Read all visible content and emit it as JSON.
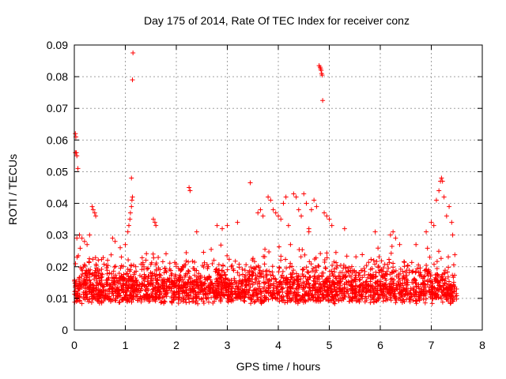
{
  "chart_data": {
    "type": "scatter",
    "title": "Day 175 of 2014, Rate Of TEC Index for receiver conz",
    "xlabel": "GPS time / hours",
    "ylabel": "ROTI / TECUs",
    "xlim": [
      0,
      8
    ],
    "ylim": [
      0,
      0.09
    ],
    "xticks": [
      "0",
      "1",
      "2",
      "3",
      "4",
      "5",
      "6",
      "7",
      "8"
    ],
    "yticks": [
      "0",
      "0.01",
      "0.02",
      "0.03",
      "0.04",
      "0.05",
      "0.06",
      "0.07",
      "0.08",
      "0.09"
    ],
    "grid": true,
    "marker": "+",
    "color": "#ff0000",
    "series": [
      {
        "name": "ROTI",
        "points": [
          [
            0.02,
            0.062
          ],
          [
            0.03,
            0.061
          ],
          [
            0.02,
            0.056
          ],
          [
            0.04,
            0.056
          ],
          [
            0.05,
            0.055
          ],
          [
            0.07,
            0.051
          ],
          [
            0.05,
            0.029
          ],
          [
            0.1,
            0.03
          ],
          [
            0.15,
            0.029
          ],
          [
            0.2,
            0.028
          ],
          [
            0.25,
            0.027
          ],
          [
            0.3,
            0.03
          ],
          [
            0.35,
            0.039
          ],
          [
            0.37,
            0.038
          ],
          [
            0.4,
            0.037
          ],
          [
            0.42,
            0.036
          ],
          [
            0.75,
            0.029
          ],
          [
            0.8,
            0.028
          ],
          [
            0.9,
            0.026
          ],
          [
            1.0,
            0.027
          ],
          [
            1.05,
            0.031
          ],
          [
            1.07,
            0.033
          ],
          [
            1.09,
            0.035
          ],
          [
            1.1,
            0.037
          ],
          [
            1.12,
            0.039
          ],
          [
            1.13,
            0.041
          ],
          [
            1.14,
            0.042
          ],
          [
            1.12,
            0.048
          ],
          [
            1.15,
            0.0875
          ],
          [
            1.14,
            0.079
          ],
          [
            1.55,
            0.035
          ],
          [
            1.58,
            0.034
          ],
          [
            1.6,
            0.033
          ],
          [
            2.25,
            0.045
          ],
          [
            2.27,
            0.044
          ],
          [
            2.4,
            0.031
          ],
          [
            2.8,
            0.033
          ],
          [
            2.9,
            0.032
          ],
          [
            3.0,
            0.033
          ],
          [
            3.2,
            0.034
          ],
          [
            3.45,
            0.0465
          ],
          [
            3.6,
            0.037
          ],
          [
            3.65,
            0.038
          ],
          [
            3.7,
            0.036
          ],
          [
            3.8,
            0.042
          ],
          [
            3.85,
            0.041
          ],
          [
            3.9,
            0.038
          ],
          [
            3.95,
            0.037
          ],
          [
            4.0,
            0.036
          ],
          [
            4.05,
            0.035
          ],
          [
            4.1,
            0.04
          ],
          [
            4.15,
            0.042
          ],
          [
            4.2,
            0.033
          ],
          [
            4.3,
            0.043
          ],
          [
            4.35,
            0.042
          ],
          [
            4.4,
            0.038
          ],
          [
            4.45,
            0.036
          ],
          [
            4.5,
            0.043
          ],
          [
            4.55,
            0.04
          ],
          [
            4.6,
            0.032
          ],
          [
            4.65,
            0.038
          ],
          [
            4.7,
            0.041
          ],
          [
            4.75,
            0.039
          ],
          [
            4.6,
            0.031
          ],
          [
            4.8,
            0.0835
          ],
          [
            4.82,
            0.083
          ],
          [
            4.83,
            0.0825
          ],
          [
            4.84,
            0.082
          ],
          [
            4.85,
            0.081
          ],
          [
            4.86,
            0.0805
          ],
          [
            4.87,
            0.0725
          ],
          [
            4.9,
            0.037
          ],
          [
            4.95,
            0.036
          ],
          [
            5.0,
            0.035
          ],
          [
            5.05,
            0.033
          ],
          [
            5.3,
            0.032
          ],
          [
            5.9,
            0.031
          ],
          [
            6.2,
            0.03
          ],
          [
            6.25,
            0.031
          ],
          [
            6.3,
            0.029
          ],
          [
            6.7,
            0.027
          ],
          [
            6.9,
            0.031
          ],
          [
            7.0,
            0.034
          ],
          [
            7.05,
            0.033
          ],
          [
            7.1,
            0.041
          ],
          [
            7.15,
            0.044
          ],
          [
            7.18,
            0.047
          ],
          [
            7.2,
            0.048
          ],
          [
            7.22,
            0.047
          ],
          [
            7.25,
            0.042
          ],
          [
            7.3,
            0.036
          ],
          [
            7.35,
            0.039
          ],
          [
            7.4,
            0.034
          ],
          [
            7.42,
            0.03
          ]
        ]
      }
    ],
    "dense_band": {
      "description": "dense cluster of + markers filling the band",
      "x_range": [
        0,
        7.5
      ],
      "y_range": [
        0.005,
        0.027
      ],
      "typical": 0.014
    }
  }
}
